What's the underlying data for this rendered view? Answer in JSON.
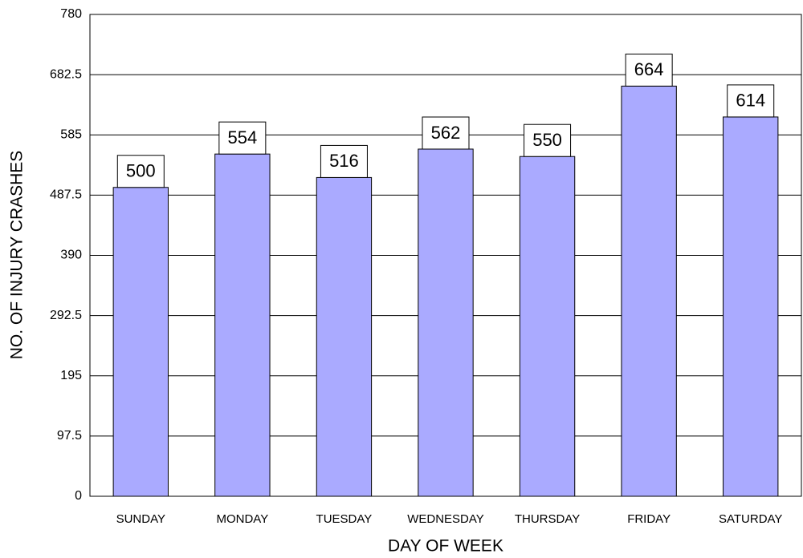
{
  "chart_data": {
    "type": "bar",
    "x_label": "DAY OF WEEK",
    "y_label": "NO. OF INJURY CRASHES",
    "categories": [
      "SUNDAY",
      "MONDAY",
      "TUESDAY",
      "WEDNESDAY",
      "THURSDAY",
      "FRIDAY",
      "SATURDAY"
    ],
    "values": [
      500,
      554,
      516,
      562,
      550,
      664,
      614
    ],
    "color": "#aaaaff",
    "ylim": [
      0,
      780
    ],
    "yticks": [
      0,
      97.5,
      195,
      292.5,
      390,
      487.5,
      585,
      682.5,
      780
    ],
    "grid": true
  }
}
